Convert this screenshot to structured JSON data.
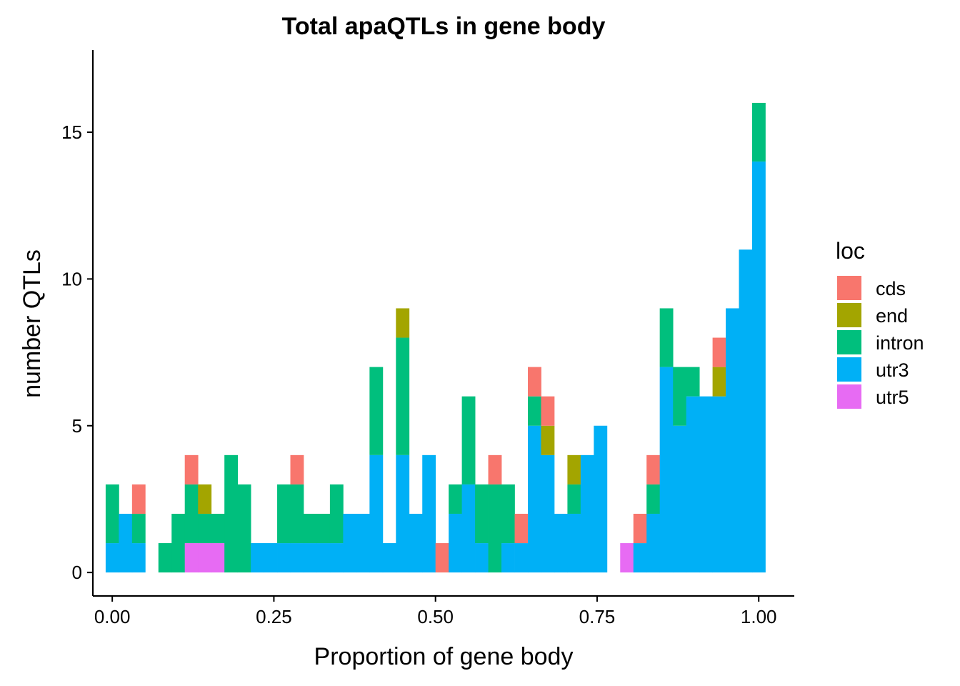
{
  "chart_data": {
    "type": "bar",
    "stacked": true,
    "title": "Total apaQTLs in gene body",
    "xlabel": "Proportion of gene body",
    "ylabel": "number QTLs",
    "xlim": [
      -0.03,
      1.055
    ],
    "ylim": [
      -0.8,
      17.8
    ],
    "bin_width": 0.0204,
    "x_ticks": [
      {
        "value": 0.0,
        "label": "0.00"
      },
      {
        "value": 0.25,
        "label": "0.25"
      },
      {
        "value": 0.5,
        "label": "0.50"
      },
      {
        "value": 0.75,
        "label": "0.75"
      },
      {
        "value": 1.0,
        "label": "1.00"
      }
    ],
    "y_ticks": [
      {
        "value": 0,
        "label": "0"
      },
      {
        "value": 5,
        "label": "5"
      },
      {
        "value": 10,
        "label": "10"
      },
      {
        "value": 15,
        "label": "15"
      }
    ],
    "legend": {
      "title": "loc",
      "position": "right"
    },
    "bin_centers": [
      0.0,
      0.0204,
      0.0408,
      0.0612,
      0.0816,
      0.102,
      0.1224,
      0.1429,
      0.1633,
      0.1837,
      0.2041,
      0.2245,
      0.2449,
      0.2653,
      0.2857,
      0.3061,
      0.3265,
      0.3469,
      0.3673,
      0.3878,
      0.4082,
      0.4286,
      0.449,
      0.4694,
      0.4898,
      0.5102,
      0.5306,
      0.551,
      0.5714,
      0.5918,
      0.6122,
      0.6327,
      0.6531,
      0.6735,
      0.6939,
      0.7143,
      0.7347,
      0.7551,
      0.7755,
      0.7959,
      0.8163,
      0.8367,
      0.8571,
      0.8776,
      0.898,
      0.9184,
      0.9388,
      0.9592,
      0.9796,
      1.0
    ],
    "series": [
      {
        "name": "utr3",
        "color": "#00B0F6",
        "values": [
          1,
          2,
          1,
          0,
          0,
          0,
          0,
          0,
          0,
          0,
          0,
          1,
          1,
          1,
          1,
          1,
          1,
          1,
          2,
          2,
          4,
          1,
          4,
          2,
          4,
          0,
          2,
          3,
          1,
          0,
          1,
          1,
          5,
          4,
          2,
          2,
          4,
          5,
          0,
          0,
          1,
          2,
          7,
          5,
          6,
          6,
          6,
          9,
          11,
          14
        ]
      },
      {
        "name": "utr5",
        "color": "#E76BF3",
        "values": [
          0,
          0,
          0,
          0,
          0,
          0,
          1,
          1,
          1,
          0,
          0,
          0,
          0,
          0,
          0,
          0,
          0,
          0,
          0,
          0,
          0,
          0,
          0,
          0,
          0,
          0,
          0,
          0,
          0,
          0,
          0,
          0,
          0,
          0,
          0,
          0,
          0,
          0,
          0,
          1,
          0,
          0,
          0,
          0,
          0,
          0,
          0,
          0,
          0,
          0
        ]
      },
      {
        "name": "intron",
        "color": "#00BF7D",
        "values": [
          2,
          0,
          1,
          0,
          1,
          2,
          2,
          1,
          1,
          4,
          3,
          0,
          0,
          2,
          2,
          1,
          1,
          2,
          0,
          0,
          3,
          0,
          4,
          0,
          0,
          0,
          1,
          3,
          2,
          3,
          2,
          0,
          1,
          0,
          0,
          1,
          0,
          0,
          0,
          0,
          0,
          1,
          2,
          2,
          1,
          0,
          0,
          0,
          0,
          2
        ]
      },
      {
        "name": "end",
        "color": "#A3A500",
        "values": [
          0,
          0,
          0,
          0,
          0,
          0,
          0,
          1,
          0,
          0,
          0,
          0,
          0,
          0,
          0,
          0,
          0,
          0,
          0,
          0,
          0,
          0,
          1,
          0,
          0,
          0,
          0,
          0,
          0,
          0,
          0,
          0,
          0,
          1,
          0,
          1,
          0,
          0,
          0,
          0,
          0,
          0,
          0,
          0,
          0,
          0,
          1,
          0,
          0,
          0
        ]
      },
      {
        "name": "cds",
        "color": "#F8766D",
        "values": [
          0,
          0,
          1,
          0,
          0,
          0,
          1,
          0,
          0,
          0,
          0,
          0,
          0,
          0,
          1,
          0,
          0,
          0,
          0,
          0,
          0,
          0,
          0,
          0,
          0,
          1,
          0,
          0,
          0,
          1,
          0,
          1,
          1,
          1,
          0,
          0,
          0,
          0,
          0,
          0,
          1,
          1,
          0,
          0,
          0,
          0,
          1,
          0,
          0,
          0
        ]
      }
    ],
    "stack_order": [
      "utr3",
      "utr5",
      "intron",
      "end",
      "cds"
    ],
    "legend_order": [
      "cds",
      "end",
      "intron",
      "utr3",
      "utr5"
    ]
  }
}
